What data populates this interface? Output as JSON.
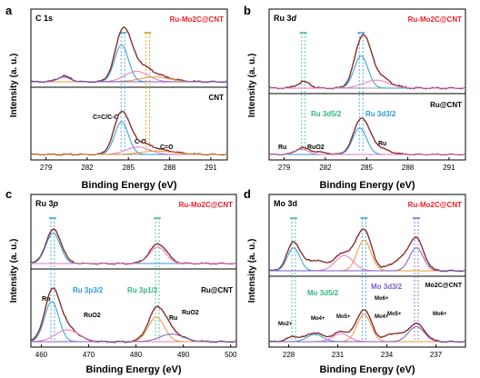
{
  "figure": {
    "colors": {
      "raw": "#1a1a1a",
      "fit_envelope": "#d62728",
      "baseline": "#7a7a7a",
      "title_red": "#e8202a",
      "blue": "#2c9bd6",
      "green": "#2fb87d",
      "purple": "#7c5cc4",
      "pink": "#e377c2",
      "orange": "#e69a3c",
      "olive": "#8a8a1e",
      "peach": "#f0a070",
      "yellow_guide": "#c8a000"
    }
  },
  "chart_data": [
    {
      "panel": "a",
      "type": "line",
      "title": "C 1s",
      "xlabel": "Binding Energy (eV)",
      "ylabel": "Intensity (a. u.)",
      "xlim": [
        277.9,
        292.2
      ],
      "xticks": [
        279,
        282,
        285,
        288,
        291
      ],
      "grid": false,
      "top_sample": "Ru-Mo2C@CNT",
      "bottom_sample": "CNT",
      "annotations": [
        "C=C/C-C",
        "C-O",
        "C=O"
      ],
      "top_series": [
        {
          "name": "",
          "role": "raw",
          "peaks": [
            {
              "center": 280.3,
              "height": 0.12,
              "width": 0.45
            },
            {
              "center": 284.6,
              "height": 0.95,
              "width": 0.55
            },
            {
              "center": 285.5,
              "height": 0.3,
              "width": 0.9
            },
            {
              "center": 286.8,
              "height": 0.12,
              "width": 1.2
            }
          ]
        },
        {
          "name": "",
          "role": "component",
          "peaks": [
            {
              "center": 284.5,
              "height": 0.78,
              "width": 0.5
            }
          ]
        },
        {
          "name": "",
          "role": "component",
          "peaks": [
            {
              "center": 285.6,
              "height": 0.22,
              "width": 0.85
            }
          ]
        },
        {
          "name": "",
          "role": "component",
          "peaks": [
            {
              "center": 286.9,
              "height": 0.1,
              "width": 1.1
            }
          ]
        },
        {
          "name": "",
          "role": "component",
          "peaks": [
            {
              "center": 280.3,
              "height": 0.1,
              "width": 0.45
            }
          ]
        }
      ],
      "bottom_series": [
        {
          "name": "",
          "role": "raw",
          "peaks": [
            {
              "center": 284.5,
              "height": 0.92,
              "width": 0.55
            },
            {
              "center": 285.6,
              "height": 0.22,
              "width": 0.9
            },
            {
              "center": 287.0,
              "height": 0.1,
              "width": 1.3
            }
          ]
        },
        {
          "name": "",
          "role": "component",
          "peaks": [
            {
              "center": 284.5,
              "height": 0.78,
              "width": 0.5
            }
          ]
        },
        {
          "name": "",
          "role": "component",
          "peaks": [
            {
              "center": 285.7,
              "height": 0.18,
              "width": 0.85
            }
          ]
        },
        {
          "name": "",
          "role": "component",
          "peaks": [
            {
              "center": 287.1,
              "height": 0.08,
              "width": 1.2
            }
          ]
        }
      ],
      "guides": [
        {
          "x": 284.6,
          "type": "blue"
        },
        {
          "x": 286.4,
          "type": "yellow"
        }
      ]
    },
    {
      "panel": "b",
      "type": "line",
      "title": "Ru 3d",
      "xlabel": "Binding Energy (eV)",
      "ylabel": "Intensity (a. u.)",
      "xlim": [
        277.9,
        292.2
      ],
      "xticks": [
        279,
        282,
        285,
        288,
        291
      ],
      "grid": false,
      "top_sample": "Ru-Mo2C@CNT",
      "bottom_sample": "Ru@CNT",
      "annotations": [
        "Ru 3d5/2",
        "Ru 3d3/2",
        "Ru",
        "RuO2",
        "Ru"
      ],
      "top_series": [
        {
          "name": "",
          "role": "raw",
          "peaks": [
            {
              "center": 280.4,
              "height": 0.12,
              "width": 0.45
            },
            {
              "center": 284.7,
              "height": 0.85,
              "width": 0.55
            },
            {
              "center": 285.6,
              "height": 0.25,
              "width": 0.9
            }
          ]
        },
        {
          "name": "",
          "role": "component",
          "peaks": [
            {
              "center": 284.6,
              "height": 0.6,
              "width": 0.5
            }
          ]
        },
        {
          "name": "",
          "role": "component",
          "peaks": [
            {
              "center": 285.7,
              "height": 0.15,
              "width": 0.9
            }
          ]
        }
      ],
      "bottom_series": [
        {
          "name": "",
          "role": "raw",
          "peaks": [
            {
              "center": 280.3,
              "height": 0.18,
              "width": 0.45
            },
            {
              "center": 281.5,
              "height": 0.07,
              "width": 0.6
            },
            {
              "center": 284.6,
              "height": 0.9,
              "width": 0.55
            },
            {
              "center": 285.5,
              "height": 0.22,
              "width": 0.9
            }
          ]
        },
        {
          "name": "",
          "role": "component",
          "peaks": [
            {
              "center": 284.5,
              "height": 0.75,
              "width": 0.5
            }
          ]
        },
        {
          "name": "",
          "role": "component",
          "peaks": [
            {
              "center": 280.3,
              "height": 0.15,
              "width": 0.45
            }
          ]
        }
      ],
      "guides": [
        {
          "x": 280.4,
          "type": "green"
        },
        {
          "x": 284.6,
          "type": "blue"
        }
      ]
    },
    {
      "panel": "c",
      "type": "line",
      "title": "Ru 3p",
      "xlabel": "Binding Energy (eV)",
      "ylabel": "Intensity (a. u.)",
      "xlim": [
        457.8,
        501.2
      ],
      "xticks": [
        460,
        470,
        480,
        490,
        500
      ],
      "grid": false,
      "top_sample": "Ru-Mo2C@CNT",
      "bottom_sample": "Ru@CNT",
      "annotations": [
        "Ru 3p3/2",
        "Ru 3p1/2",
        "Ru",
        "RuO2",
        "Ru",
        "RuO2"
      ],
      "top_series": [
        {
          "name": "",
          "role": "raw",
          "peaks": [
            {
              "center": 462.6,
              "height": 0.78,
              "width": 1.6
            },
            {
              "center": 484.7,
              "height": 0.45,
              "width": 1.8
            }
          ]
        },
        {
          "name": "",
          "role": "component",
          "peaks": [
            {
              "center": 462.5,
              "height": 0.7,
              "width": 1.5
            }
          ]
        },
        {
          "name": "",
          "role": "component",
          "peaks": [
            {
              "center": 484.6,
              "height": 0.38,
              "width": 1.7
            }
          ]
        }
      ],
      "bottom_series": [
        {
          "name": "",
          "role": "raw",
          "peaks": [
            {
              "center": 462.3,
              "height": 0.95,
              "width": 1.6
            },
            {
              "center": 465.0,
              "height": 0.3,
              "width": 2.5
            },
            {
              "center": 484.4,
              "height": 0.62,
              "width": 1.8
            },
            {
              "center": 487.0,
              "height": 0.2,
              "width": 2.5
            }
          ]
        },
        {
          "name": "",
          "role": "component",
          "peaks": [
            {
              "center": 462.2,
              "height": 0.85,
              "width": 1.5
            }
          ]
        },
        {
          "name": "",
          "role": "component",
          "peaks": [
            {
              "center": 465.5,
              "height": 0.25,
              "width": 2.5
            }
          ]
        },
        {
          "name": "",
          "role": "component",
          "peaks": [
            {
              "center": 484.3,
              "height": 0.52,
              "width": 1.7
            }
          ]
        },
        {
          "name": "",
          "role": "component",
          "peaks": [
            {
              "center": 487.5,
              "height": 0.16,
              "width": 2.5
            }
          ]
        }
      ],
      "guides": [
        {
          "x": 462.4,
          "type": "blue"
        },
        {
          "x": 484.5,
          "type": "green"
        }
      ]
    },
    {
      "panel": "d",
      "type": "line",
      "title": "Mo 3d",
      "xlabel": "Binding Energy (eV)",
      "ylabel": "Intensity (a. u.)",
      "xlim": [
        226.8,
        238.8
      ],
      "xticks": [
        228,
        231,
        234,
        237
      ],
      "grid": false,
      "top_sample": "Ru-Mo2C@CNT",
      "bottom_sample": "Mo2C@CNT",
      "annotations": [
        "Mo 3d5/2",
        "Mo 3d3/2",
        "Mo2+",
        "Mo4+",
        "Mo5+",
        "Mo6+",
        "Mo4+",
        "Mo5+",
        "Mo6+"
      ],
      "top_series": [
        {
          "name": "",
          "role": "raw",
          "peaks": [
            {
              "center": 228.3,
              "height": 0.55,
              "width": 0.4
            },
            {
              "center": 229.6,
              "height": 0.2,
              "width": 0.6
            },
            {
              "center": 231.4,
              "height": 0.35,
              "width": 0.6
            },
            {
              "center": 232.6,
              "height": 0.78,
              "width": 0.45
            },
            {
              "center": 234.8,
              "height": 0.2,
              "width": 0.6
            },
            {
              "center": 235.8,
              "height": 0.6,
              "width": 0.45
            }
          ]
        },
        {
          "name": "",
          "role": "component",
          "peaks": [
            {
              "center": 228.3,
              "height": 0.45,
              "width": 0.38
            }
          ]
        },
        {
          "name": "",
          "role": "component",
          "peaks": [
            {
              "center": 231.4,
              "height": 0.3,
              "width": 0.55
            }
          ]
        },
        {
          "name": "",
          "role": "component",
          "peaks": [
            {
              "center": 232.6,
              "height": 0.6,
              "width": 0.42
            }
          ]
        },
        {
          "name": "",
          "role": "component",
          "peaks": [
            {
              "center": 235.8,
              "height": 0.45,
              "width": 0.42
            }
          ]
        }
      ],
      "bottom_series": [
        {
          "name": "",
          "role": "raw",
          "peaks": [
            {
              "center": 228.3,
              "height": 0.12,
              "width": 0.4
            },
            {
              "center": 229.6,
              "height": 0.22,
              "width": 0.5
            },
            {
              "center": 231.2,
              "height": 0.25,
              "width": 0.5
            },
            {
              "center": 232.6,
              "height": 0.8,
              "width": 0.45
            },
            {
              "center": 234.4,
              "height": 0.2,
              "width": 0.5
            },
            {
              "center": 235.8,
              "height": 0.45,
              "width": 0.5
            }
          ]
        },
        {
          "name": "",
          "role": "component",
          "peaks": [
            {
              "center": 229.6,
              "height": 0.18,
              "width": 0.48
            }
          ]
        },
        {
          "name": "",
          "role": "component",
          "peaks": [
            {
              "center": 231.2,
              "height": 0.2,
              "width": 0.5
            }
          ]
        },
        {
          "name": "",
          "role": "component",
          "peaks": [
            {
              "center": 232.6,
              "height": 0.68,
              "width": 0.43
            }
          ]
        },
        {
          "name": "",
          "role": "component",
          "peaks": [
            {
              "center": 235.8,
              "height": 0.38,
              "width": 0.48
            }
          ]
        }
      ],
      "guides": [
        {
          "x": 228.3,
          "type": "green"
        },
        {
          "x": 232.6,
          "type": "blue"
        },
        {
          "x": 235.8,
          "type": "purple"
        }
      ]
    }
  ],
  "labels": {
    "a": {
      "letter": "a",
      "title": "C 1s",
      "sample_top": "Ru-Mo2C@CNT",
      "sample_bottom": "CNT",
      "ylabel": "Intensity (a. u.)",
      "xlabel": "Binding Energy (eV)",
      "ann1": "C=C/C-C",
      "ann2": "C-O",
      "ann3": "C=O"
    },
    "b": {
      "letter": "b",
      "title_main": "Ru 3",
      "title_sub": "d",
      "sample_top": "Ru-Mo2C@CNT",
      "sample_bottom": "Ru@CNT",
      "ylabel": "Intensity (a. u.)",
      "xlabel": "Binding Energy (eV)",
      "peak_52": "Ru 3d5/2",
      "peak_32": "Ru 3d3/2",
      "ru1": "Ru",
      "ruo2": "RuO2",
      "ru2": "Ru"
    },
    "c": {
      "letter": "c",
      "title_main": "Ru 3",
      "title_sub": "p",
      "sample_top": "Ru-Mo2C@CNT",
      "sample_bottom": "Ru@CNT",
      "ylabel": "Intensity (a. u.)",
      "xlabel": "Binding Energy (eV)",
      "peak_32": "Ru 3p3/2",
      "peak_12": "Ru 3p1/2",
      "ru1": "Ru",
      "ruo2_1": "RuO2",
      "ru2": "Ru",
      "ruo2_2": "RuO2"
    },
    "d": {
      "letter": "d",
      "title": "Mo 3d",
      "sample_top": "Ru-Mo2C@CNT",
      "sample_bottom": "Mo2C@CNT",
      "ylabel": "Intensity (a. u.)",
      "xlabel": "Binding Energy (eV)",
      "peak_52": "Mo 3d5/2",
      "peak_32": "Mo 3d3/2",
      "mo2": "Mo2+",
      "mo4a": "Mo4+",
      "mo5a": "Mo5+",
      "mo6a": "Mo6+",
      "mo4b": "Mo4+",
      "mo5b": "Mo5+",
      "mo6b": "Mo6+"
    }
  }
}
